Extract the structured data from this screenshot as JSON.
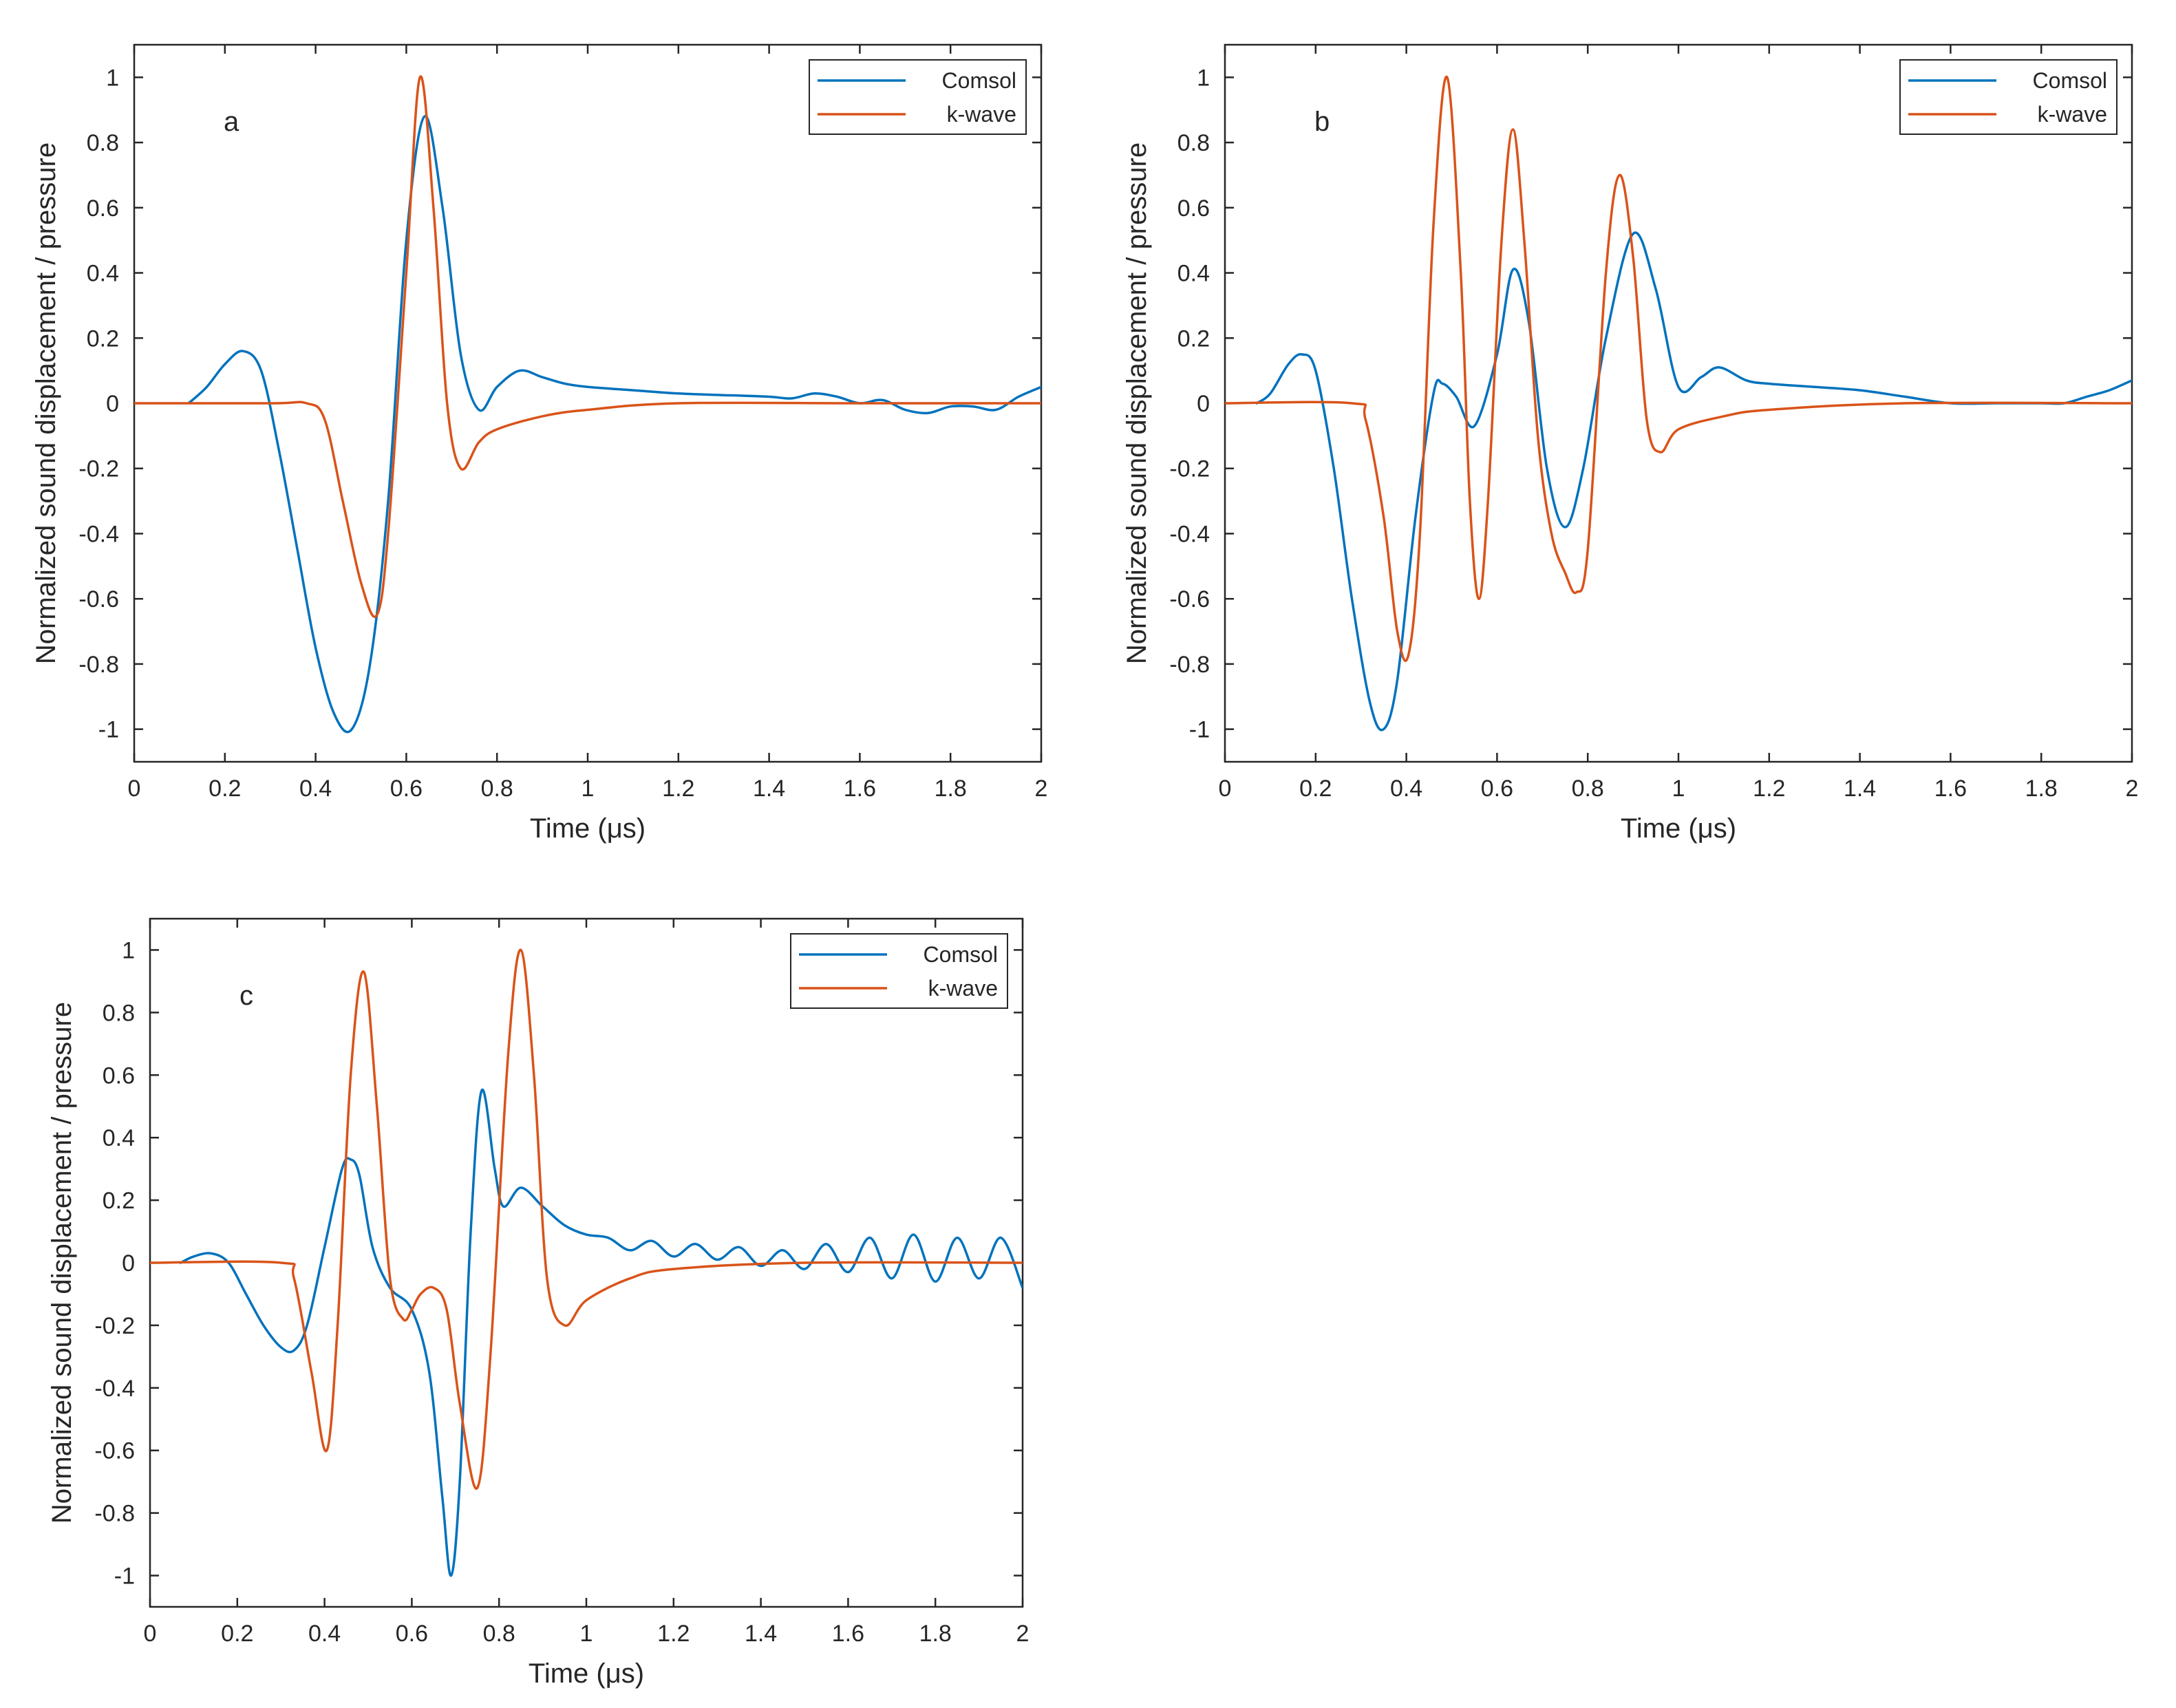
{
  "figure": {
    "colors": {
      "comsol": "#0072BD",
      "kwave": "#D95319",
      "axis": "#262626"
    }
  },
  "chart_data": [
    {
      "panel": "a",
      "type": "line",
      "xlabel": "Time (μs)",
      "ylabel": "Normalized sound displacement / pressure",
      "xlim": [
        0,
        2
      ],
      "ylim": [
        -1.1,
        1.1
      ],
      "xticks": [
        0,
        0.2,
        0.4,
        0.6,
        0.8,
        1,
        1.2,
        1.4,
        1.6,
        1.8,
        2
      ],
      "xtick_labels": [
        "0",
        "0.2",
        "0.4",
        "0.6",
        "0.8",
        "1",
        "1.2",
        "1.4",
        "1.6",
        "1.8",
        "2"
      ],
      "yticks": [
        -1,
        -0.8,
        -0.6,
        -0.4,
        -0.2,
        0,
        0.2,
        0.4,
        0.6,
        0.8,
        1
      ],
      "ytick_labels": [
        "-1",
        "-0.8",
        "-0.6",
        "-0.4",
        "-0.2",
        "0",
        "0.2",
        "0.4",
        "0.6",
        "0.8",
        "1"
      ],
      "legend": {
        "location": "top-right",
        "entries": [
          "Comsol",
          "k-wave"
        ]
      },
      "series": [
        {
          "name": "Comsol",
          "color": "#0072BD",
          "x": [
            0.12,
            0.16,
            0.2,
            0.24,
            0.28,
            0.32,
            0.36,
            0.4,
            0.44,
            0.48,
            0.52,
            0.56,
            0.6,
            0.64,
            0.68,
            0.72,
            0.76,
            0.8,
            0.85,
            0.9,
            0.95,
            1.0,
            1.1,
            1.2,
            1.3,
            1.4,
            1.45,
            1.5,
            1.55,
            1.6,
            1.65,
            1.7,
            1.75,
            1.8,
            1.85,
            1.9,
            1.95,
            2.0
          ],
          "y": [
            0.0,
            0.05,
            0.12,
            0.16,
            0.1,
            -0.15,
            -0.45,
            -0.75,
            -0.95,
            -1.0,
            -0.8,
            -0.3,
            0.5,
            0.88,
            0.6,
            0.15,
            -0.02,
            0.05,
            0.1,
            0.08,
            0.06,
            0.05,
            0.04,
            0.03,
            0.025,
            0.02,
            0.015,
            0.03,
            0.02,
            0.0,
            0.01,
            -0.02,
            -0.03,
            -0.01,
            -0.01,
            -0.02,
            0.02,
            0.05
          ]
        },
        {
          "name": "k-wave",
          "color": "#D95319",
          "x": [
            0.0,
            0.3,
            0.38,
            0.42,
            0.46,
            0.5,
            0.535,
            0.56,
            0.6,
            0.63,
            0.66,
            0.69,
            0.72,
            0.76,
            0.8,
            0.9,
            1.0,
            1.2,
            1.6,
            2.0
          ],
          "y": [
            0.0,
            0.0,
            0.0,
            -0.05,
            -0.3,
            -0.55,
            -0.65,
            -0.4,
            0.4,
            1.0,
            0.6,
            0.0,
            -0.2,
            -0.12,
            -0.08,
            -0.04,
            -0.02,
            0.0,
            0.0,
            0.0
          ]
        }
      ]
    },
    {
      "panel": "b",
      "type": "line",
      "xlabel": "Time (μs)",
      "ylabel": "Normalized sound displacement / pressure",
      "xlim": [
        0,
        2
      ],
      "ylim": [
        -1.1,
        1.1
      ],
      "xticks": [
        0,
        0.2,
        0.4,
        0.6,
        0.8,
        1,
        1.2,
        1.4,
        1.6,
        1.8,
        2
      ],
      "xtick_labels": [
        "0",
        "0.2",
        "0.4",
        "0.6",
        "0.8",
        "1",
        "1.2",
        "1.4",
        "1.6",
        "1.8",
        "2"
      ],
      "yticks": [
        -1,
        -0.8,
        -0.6,
        -0.4,
        -0.2,
        0,
        0.2,
        0.4,
        0.6,
        0.8,
        1
      ],
      "ytick_labels": [
        "-1",
        "-0.8",
        "-0.6",
        "-0.4",
        "-0.2",
        "0",
        "0.2",
        "0.4",
        "0.6",
        "0.8",
        "1"
      ],
      "legend": {
        "location": "top-right",
        "entries": [
          "Comsol",
          "k-wave"
        ]
      },
      "series": [
        {
          "name": "Comsol",
          "color": "#0072BD",
          "x": [
            0.07,
            0.1,
            0.14,
            0.17,
            0.2,
            0.24,
            0.28,
            0.32,
            0.35,
            0.38,
            0.42,
            0.46,
            0.48,
            0.51,
            0.55,
            0.6,
            0.635,
            0.67,
            0.71,
            0.75,
            0.79,
            0.84,
            0.9,
            0.95,
            1.0,
            1.05,
            1.09,
            1.15,
            1.2,
            1.3,
            1.4,
            1.5,
            1.6,
            1.7,
            1.8,
            1.85,
            1.9,
            1.95,
            2.0
          ],
          "y": [
            0.0,
            0.03,
            0.12,
            0.15,
            0.1,
            -0.2,
            -0.6,
            -0.92,
            -1.0,
            -0.85,
            -0.35,
            0.03,
            0.06,
            0.02,
            -0.07,
            0.15,
            0.41,
            0.25,
            -0.2,
            -0.38,
            -0.2,
            0.2,
            0.52,
            0.35,
            0.05,
            0.08,
            0.11,
            0.07,
            0.06,
            0.05,
            0.04,
            0.02,
            0.0,
            0.0,
            0.0,
            0.0,
            0.02,
            0.04,
            0.07
          ]
        },
        {
          "name": "k-wave",
          "color": "#D95319",
          "x": [
            0.0,
            0.28,
            0.31,
            0.35,
            0.38,
            0.405,
            0.43,
            0.46,
            0.49,
            0.52,
            0.54,
            0.56,
            0.58,
            0.61,
            0.635,
            0.66,
            0.69,
            0.72,
            0.75,
            0.775,
            0.8,
            0.84,
            0.87,
            0.9,
            0.93,
            0.96,
            1.0,
            1.1,
            1.2,
            1.5,
            2.0
          ],
          "y": [
            0.0,
            0.0,
            -0.05,
            -0.35,
            -0.7,
            -0.77,
            -0.4,
            0.55,
            1.0,
            0.4,
            -0.3,
            -0.6,
            -0.3,
            0.5,
            0.84,
            0.5,
            -0.1,
            -0.4,
            -0.52,
            -0.58,
            -0.45,
            0.4,
            0.7,
            0.45,
            -0.05,
            -0.15,
            -0.08,
            -0.04,
            -0.02,
            0.0,
            0.0
          ]
        }
      ]
    },
    {
      "panel": "c",
      "type": "line",
      "xlabel": "Time (μs)",
      "ylabel": "Normalized sound displacement / pressure",
      "xlim": [
        0,
        2
      ],
      "ylim": [
        -1.1,
        1.1
      ],
      "xticks": [
        0,
        0.2,
        0.4,
        0.6,
        0.8,
        1,
        1.2,
        1.4,
        1.6,
        1.8,
        2
      ],
      "xtick_labels": [
        "0",
        "0.2",
        "0.4",
        "0.6",
        "0.8",
        "1",
        "1.2",
        "1.4",
        "1.6",
        "1.8",
        "2"
      ],
      "yticks": [
        -1,
        -0.8,
        -0.6,
        -0.4,
        -0.2,
        0,
        0.2,
        0.4,
        0.6,
        0.8,
        1
      ],
      "ytick_labels": [
        "-1",
        "-0.8",
        "-0.6",
        "-0.4",
        "-0.2",
        "0",
        "0.2",
        "0.4",
        "0.6",
        "0.8",
        "1"
      ],
      "legend": {
        "location": "top-right",
        "entries": [
          "Comsol",
          "k-wave"
        ]
      },
      "series": [
        {
          "name": "Comsol",
          "color": "#0072BD",
          "x": [
            0.07,
            0.1,
            0.14,
            0.18,
            0.22,
            0.26,
            0.3,
            0.33,
            0.36,
            0.4,
            0.44,
            0.46,
            0.48,
            0.51,
            0.55,
            0.6,
            0.64,
            0.67,
            0.69,
            0.71,
            0.735,
            0.76,
            0.79,
            0.81,
            0.85,
            0.9,
            0.95,
            1.0,
            1.05,
            1.1,
            1.15,
            1.2,
            1.25,
            1.3,
            1.35,
            1.4,
            1.45,
            1.5,
            1.55,
            1.6,
            1.65,
            1.7,
            1.75,
            1.8,
            1.85,
            1.9,
            1.95,
            2.0
          ],
          "y": [
            0.0,
            0.02,
            0.03,
            0.0,
            -0.1,
            -0.2,
            -0.27,
            -0.28,
            -0.2,
            0.05,
            0.3,
            0.33,
            0.28,
            0.05,
            -0.08,
            -0.15,
            -0.35,
            -0.75,
            -1.0,
            -0.7,
            0.1,
            0.55,
            0.3,
            0.18,
            0.24,
            0.18,
            0.12,
            0.09,
            0.08,
            0.04,
            0.07,
            0.02,
            0.06,
            0.01,
            0.05,
            -0.01,
            0.04,
            -0.02,
            0.06,
            -0.03,
            0.08,
            -0.05,
            0.09,
            -0.06,
            0.08,
            -0.05,
            0.08,
            -0.08
          ]
        },
        {
          "name": "k-wave",
          "color": "#D95319",
          "x": [
            0.0,
            0.3,
            0.33,
            0.37,
            0.405,
            0.43,
            0.46,
            0.49,
            0.52,
            0.55,
            0.58,
            0.6,
            0.62,
            0.65,
            0.68,
            0.71,
            0.75,
            0.78,
            0.82,
            0.85,
            0.88,
            0.91,
            0.95,
            1.0,
            1.1,
            1.2,
            1.5,
            2.0
          ],
          "y": [
            0.0,
            0.0,
            -0.05,
            -0.35,
            -0.6,
            -0.2,
            0.6,
            0.93,
            0.5,
            -0.05,
            -0.18,
            -0.15,
            -0.1,
            -0.08,
            -0.15,
            -0.45,
            -0.72,
            -0.3,
            0.65,
            1.0,
            0.6,
            -0.05,
            -0.2,
            -0.12,
            -0.05,
            -0.02,
            0.0,
            0.0
          ]
        }
      ]
    }
  ]
}
